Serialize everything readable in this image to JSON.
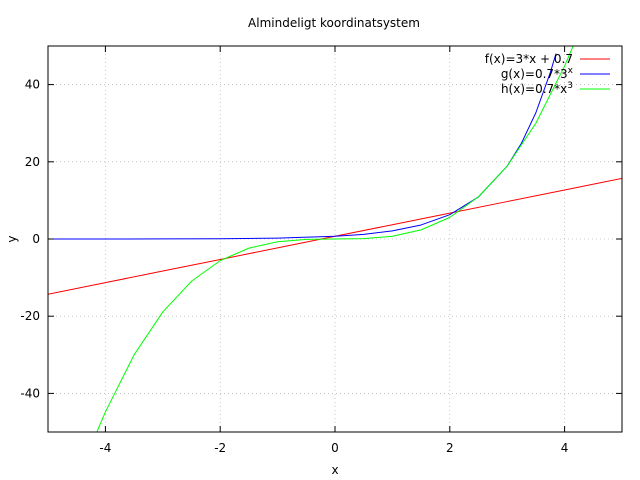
{
  "chart_data": {
    "type": "line",
    "title": "Almindeligt koordinatsystem",
    "xlabel": "x",
    "ylabel": "y",
    "xlim": [
      -5,
      5
    ],
    "ylim": [
      -50,
      50
    ],
    "xticks": [
      -4,
      -2,
      0,
      2,
      4
    ],
    "yticks": [
      -40,
      -20,
      0,
      20,
      40
    ],
    "grid": true,
    "legend_position": "top-right",
    "series": [
      {
        "name": "f(x)=3*x + 0.7",
        "legend_base": "f(x)=3*x + 0.7",
        "legend_sup": "",
        "color": "#ff0000",
        "x": [
          -5,
          -4,
          -3,
          -2,
          -1,
          0,
          1,
          2,
          3,
          4,
          5
        ],
        "y": [
          -14.3,
          -11.3,
          -8.3,
          -5.3,
          -2.3,
          0.7,
          3.7,
          6.7,
          9.7,
          12.7,
          15.7
        ]
      },
      {
        "name": "g(x)=0.7*3^x",
        "legend_base": "g(x)=0.7*3",
        "legend_sup": "x",
        "color": "#0000ff",
        "x": [
          -5,
          -4,
          -3,
          -2,
          -1,
          0,
          0.5,
          1,
          1.5,
          2,
          2.5,
          3,
          3.25,
          3.5,
          3.75,
          3.85
        ],
        "y": [
          0.0029,
          0.0086,
          0.026,
          0.078,
          0.23,
          0.7,
          1.21,
          2.1,
          3.64,
          6.3,
          10.91,
          18.9,
          24.87,
          32.74,
          43.09,
          48.02
        ]
      },
      {
        "name": "h(x)=0.7*x^3",
        "legend_base": "h(x)=0.7*x",
        "legend_sup": "3",
        "color": "#00ff00",
        "x": [
          -4.15,
          -4,
          -3.5,
          -3,
          -2.5,
          -2,
          -1.5,
          -1,
          -0.5,
          0,
          0.5,
          1,
          1.5,
          2,
          2.5,
          3,
          3.5,
          4,
          4.15
        ],
        "y": [
          -50.03,
          -44.8,
          -30.01,
          -18.9,
          -10.94,
          -5.6,
          -2.36,
          -0.7,
          -0.09,
          0,
          0.09,
          0.7,
          2.36,
          5.6,
          10.94,
          18.9,
          30.01,
          44.8,
          50.03
        ]
      }
    ]
  }
}
